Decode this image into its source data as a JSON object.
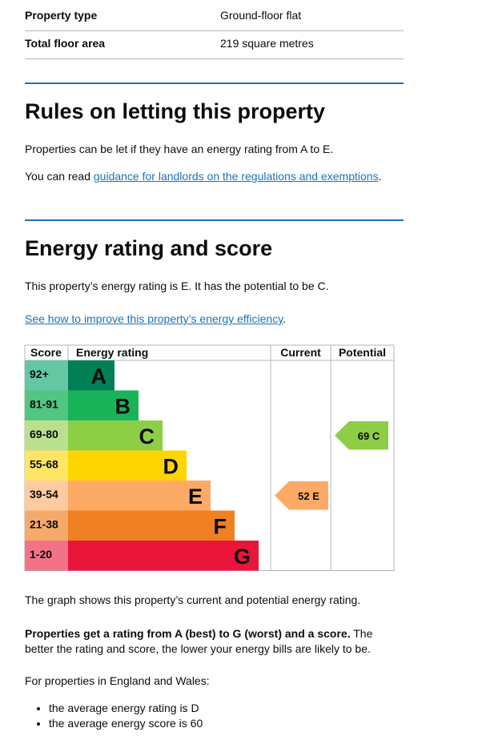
{
  "summary": {
    "rows": [
      {
        "label": "Property type",
        "value": "Ground-floor flat"
      },
      {
        "label": "Total floor area",
        "value": "219 square metres"
      }
    ]
  },
  "rules": {
    "heading": "Rules on letting this property",
    "paragraph": "Properties can be let if they have an energy rating from A to E.",
    "link_prefix": "You can read ",
    "link": "guidance for landlords on the regulations and exemptions",
    "link_suffix": "."
  },
  "energy": {
    "heading": "Energy rating and score",
    "paragraph": "This property’s energy rating is E. It has the potential to be C.",
    "link": "See how to improve this property’s energy efficiency",
    "link_suffix": ".",
    "chart": {
      "headers": {
        "score": "Score",
        "rating": "Energy rating",
        "current": "Current",
        "potential": "Potential"
      },
      "bands": [
        {
          "range": "92+",
          "letter": "A",
          "color": "#008054",
          "score_color": "#64c6a3"
        },
        {
          "range": "81-91",
          "letter": "B",
          "color": "#19b459",
          "score_color": "#53c583"
        },
        {
          "range": "69-80",
          "letter": "C",
          "color": "#8dce46",
          "score_color": "#b9e08f"
        },
        {
          "range": "55-68",
          "letter": "D",
          "color": "#ffd500",
          "score_color": "#ffe566"
        },
        {
          "range": "39-54",
          "letter": "E",
          "color": "#fcaa65",
          "score_color": "#fdcb9f"
        },
        {
          "range": "21-38",
          "letter": "F",
          "color": "#ef8023",
          "score_color": "#f5aa6c"
        },
        {
          "range": "1-20",
          "letter": "G",
          "color": "#e9153b",
          "score_color": "#f27388"
        }
      ],
      "current": {
        "score": 52,
        "letter": "E"
      },
      "potential": {
        "score": 69,
        "letter": "C"
      }
    }
  },
  "notes": {
    "graph": "The graph shows this property’s current and potential energy rating.",
    "bold": "Properties get a rating from A (best) to G (worst) and a score.",
    "rest": " The better the rating and score, the lower your energy bills are likely to be.",
    "region": "For properties in England and Wales:",
    "list": [
      "the average energy rating is D",
      "the average energy score is 60"
    ]
  }
}
